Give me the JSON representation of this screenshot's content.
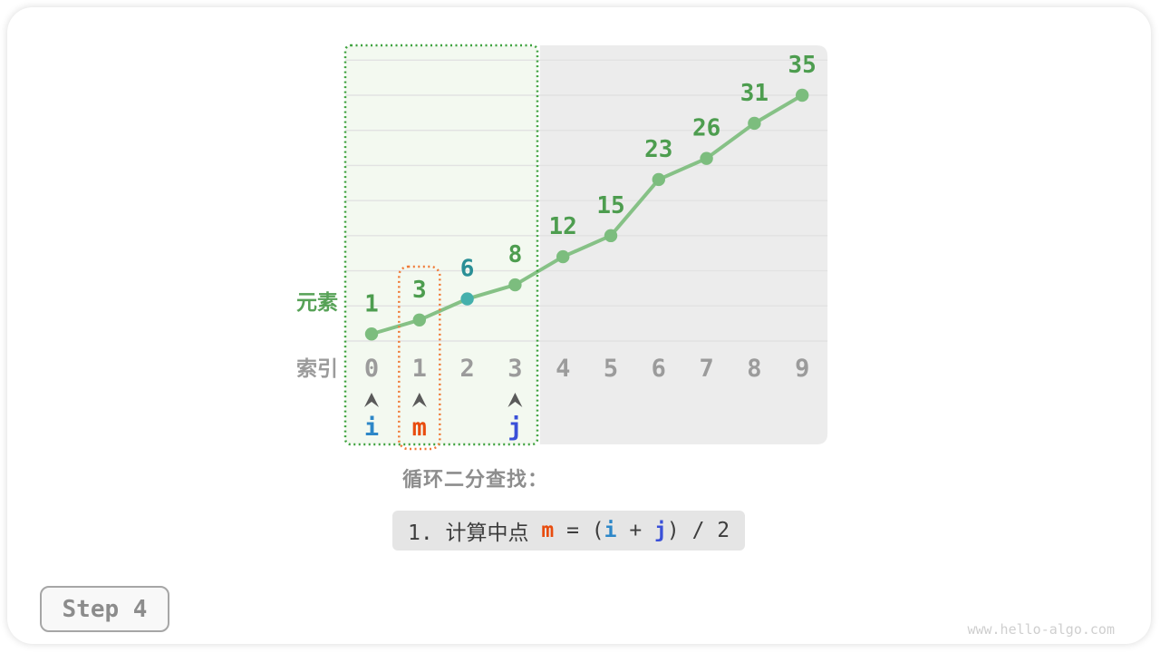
{
  "watermark": "www.hello-algo.com",
  "step": {
    "label": "Step 4"
  },
  "caption": {
    "title": "循环二分查找：",
    "instruction_tokens": [
      {
        "text": "1. 计算中点 ",
        "color_key": "text"
      },
      {
        "text": "m",
        "color_key": "pointer_m"
      },
      {
        "text": " = (",
        "color_key": "text"
      },
      {
        "text": "i",
        "color_key": "pointer_i"
      },
      {
        "text": " + ",
        "color_key": "text"
      },
      {
        "text": "j",
        "color_key": "pointer_j"
      },
      {
        "text": ") / 2",
        "color_key": "text"
      }
    ]
  },
  "chart_data": {
    "type": "line",
    "x_axis_label": "索引",
    "y_axis_label": "元素",
    "x": [
      0,
      1,
      2,
      3,
      4,
      5,
      6,
      7,
      8,
      9
    ],
    "values": [
      1,
      3,
      6,
      8,
      12,
      15,
      23,
      26,
      31,
      35
    ],
    "ylim": [
      0,
      40
    ],
    "grid_step": 5,
    "grid": true,
    "legend": "none",
    "highlight_point_index": 2,
    "search_range": {
      "from": 0,
      "to": 3
    },
    "excluded_range": {
      "from": 4,
      "to": 9
    },
    "mid_box_index": 1,
    "pointers": [
      {
        "label": "i",
        "index": 0,
        "color_key": "pointer_i"
      },
      {
        "label": "m",
        "index": 1,
        "color_key": "pointer_m"
      },
      {
        "label": "j",
        "index": 3,
        "color_key": "pointer_j"
      }
    ]
  },
  "colors": {
    "text": "#3d3d3d",
    "pointer_i": "#2d87c8",
    "pointer_m": "#e84c0e",
    "pointer_j": "#3a50d8",
    "line": "#86c186",
    "dot": "#7cbd7e",
    "value_label": "#4d9d4f",
    "highlight_dot": "#44b0ac",
    "highlight_label": "#2a8f96",
    "index_label": "#9b9b9b",
    "element_label": "#57a257",
    "grid_line": "#e2e2e2",
    "search_region_border": "#3fa23f",
    "search_region_fill": "#f3f9f0",
    "excluded_region_fill": "#ececec",
    "mid_box_border": "#f07b38",
    "caret": "#5a5a5a",
    "title_text": "#8d8d8d",
    "instruction_bg": "#e5e5e5",
    "step_text": "#8c8c8c",
    "step_border": "#a6a6a6",
    "step_bg": "#f8f8f8",
    "watermark_text": "#cfcfcf"
  }
}
